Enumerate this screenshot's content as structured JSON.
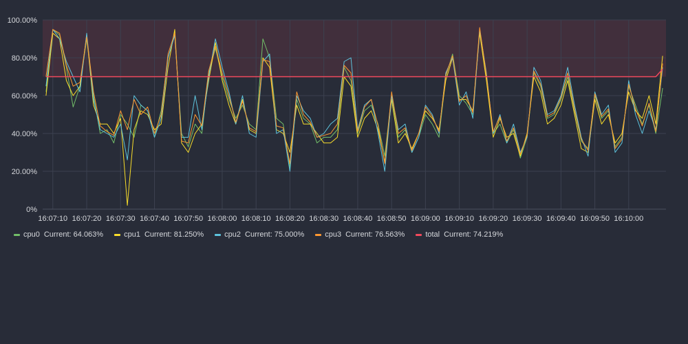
{
  "chart_data": {
    "type": "line",
    "title": "",
    "xlabel": "",
    "ylabel": "",
    "ylim": [
      0,
      100
    ],
    "xlim": [
      "16:07:07",
      "16:10:11"
    ],
    "y_ticks": [
      "0%",
      "20.00%",
      "40.00%",
      "60.00%",
      "80.00%",
      "100.00%"
    ],
    "x_ticks": [
      "16:07:10",
      "16:07:20",
      "16:07:30",
      "16:07:40",
      "16:07:50",
      "16:08:00",
      "16:08:10",
      "16:08:20",
      "16:08:30",
      "16:08:40",
      "16:08:50",
      "16:09:00",
      "16:09:10",
      "16:09:20",
      "16:09:30",
      "16:09:40",
      "16:09:50",
      "16:10:00"
    ],
    "threshold": 70,
    "threshold_band": [
      70,
      100
    ],
    "grid": true,
    "legend_position": "bottom-left",
    "x": [
      "16:07:08",
      "16:07:10",
      "16:07:12",
      "16:07:14",
      "16:07:16",
      "16:07:18",
      "16:07:20",
      "16:07:22",
      "16:07:24",
      "16:07:26",
      "16:07:28",
      "16:07:30",
      "16:07:32",
      "16:07:34",
      "16:07:36",
      "16:07:38",
      "16:07:40",
      "16:07:42",
      "16:07:44",
      "16:07:46",
      "16:07:48",
      "16:07:50",
      "16:07:52",
      "16:07:54",
      "16:07:56",
      "16:07:58",
      "16:08:00",
      "16:08:02",
      "16:08:04",
      "16:08:06",
      "16:08:08",
      "16:08:10",
      "16:08:12",
      "16:08:14",
      "16:08:16",
      "16:08:18",
      "16:08:20",
      "16:08:22",
      "16:08:24",
      "16:08:26",
      "16:08:28",
      "16:08:30",
      "16:08:32",
      "16:08:34",
      "16:08:36",
      "16:08:38",
      "16:08:40",
      "16:08:42",
      "16:08:44",
      "16:08:46",
      "16:08:48",
      "16:08:50",
      "16:08:52",
      "16:08:54",
      "16:08:56",
      "16:08:58",
      "16:09:00",
      "16:09:02",
      "16:09:04",
      "16:09:06",
      "16:09:08",
      "16:09:10",
      "16:09:12",
      "16:09:14",
      "16:09:16",
      "16:09:18",
      "16:09:20",
      "16:09:22",
      "16:09:24",
      "16:09:26",
      "16:09:28",
      "16:09:30",
      "16:09:32",
      "16:09:34",
      "16:09:36",
      "16:09:38",
      "16:09:40",
      "16:09:42",
      "16:09:44",
      "16:09:46",
      "16:09:48",
      "16:09:50",
      "16:09:52",
      "16:09:54",
      "16:09:56",
      "16:09:58",
      "16:10:00",
      "16:10:02",
      "16:10:04",
      "16:10:06",
      "16:10:08",
      "16:10:10"
    ],
    "series": [
      {
        "name": "cpu0",
        "current_label": "Current: 64.063%",
        "color": "#73bf69",
        "values": [
          62,
          95,
          92,
          75,
          54,
          65,
          90,
          60,
          40,
          42,
          35,
          50,
          45,
          38,
          55,
          52,
          38,
          52,
          80,
          92,
          40,
          33,
          45,
          40,
          72,
          85,
          70,
          58,
          48,
          55,
          45,
          42,
          90,
          80,
          48,
          45,
          22,
          58,
          48,
          45,
          35,
          38,
          38,
          42,
          75,
          68,
          40,
          52,
          55,
          45,
          28,
          60,
          38,
          42,
          30,
          38,
          50,
          45,
          38,
          70,
          82,
          60,
          56,
          50,
          95,
          70,
          40,
          45,
          35,
          42,
          27,
          38,
          72,
          65,
          48,
          50,
          58,
          70,
          52,
          36,
          32,
          60,
          48,
          52,
          33,
          38,
          65,
          55,
          45,
          55,
          40,
          64
        ]
      },
      {
        "name": "cpu1",
        "current_label": "Current: 81.250%",
        "color": "#fade2a",
        "values": [
          60,
          93,
          90,
          68,
          60,
          65,
          92,
          55,
          45,
          45,
          40,
          48,
          2,
          42,
          52,
          50,
          42,
          45,
          75,
          95,
          35,
          30,
          40,
          45,
          68,
          88,
          68,
          55,
          45,
          58,
          42,
          40,
          80,
          75,
          42,
          40,
          30,
          55,
          45,
          45,
          40,
          35,
          35,
          38,
          70,
          65,
          38,
          48,
          52,
          42,
          25,
          58,
          35,
          40,
          32,
          40,
          52,
          48,
          42,
          68,
          80,
          58,
          58,
          52,
          93,
          68,
          38,
          48,
          38,
          40,
          28,
          40,
          70,
          62,
          45,
          48,
          55,
          68,
          50,
          32,
          30,
          58,
          45,
          50,
          35,
          40,
          62,
          52,
          48,
          60,
          45,
          81
        ]
      },
      {
        "name": "cpu2",
        "current_label": "Current: 75.000%",
        "color": "#5ec4dd",
        "values": [
          65,
          95,
          90,
          78,
          70,
          62,
          93,
          58,
          42,
          40,
          38,
          45,
          26,
          60,
          55,
          52,
          38,
          48,
          80,
          92,
          38,
          38,
          60,
          42,
          70,
          90,
          75,
          62,
          45,
          60,
          40,
          38,
          78,
          82,
          40,
          42,
          20,
          60,
          52,
          48,
          38,
          40,
          45,
          48,
          78,
          80,
          42,
          55,
          58,
          40,
          20,
          60,
          42,
          45,
          30,
          38,
          55,
          50,
          40,
          72,
          80,
          55,
          62,
          48,
          95,
          72,
          40,
          50,
          35,
          45,
          30,
          38,
          75,
          68,
          50,
          52,
          60,
          75,
          55,
          38,
          28,
          62,
          50,
          55,
          30,
          35,
          68,
          50,
          40,
          52,
          42,
          75
        ]
      },
      {
        "name": "cpu3",
        "current_label": "Current: 76.563%",
        "color": "#ff9830",
        "values": [
          70,
          95,
          93,
          76,
          65,
          67,
          91,
          62,
          44,
          41,
          39,
          52,
          42,
          58,
          50,
          54,
          40,
          50,
          82,
          93,
          36,
          35,
          50,
          44,
          73,
          86,
          72,
          60,
          46,
          57,
          43,
          41,
          79,
          78,
          44,
          43,
          24,
          62,
          50,
          46,
          38,
          39,
          40,
          45,
          76,
          72,
          41,
          54,
          58,
          44,
          24,
          62,
          40,
          43,
          31,
          40,
          54,
          49,
          41,
          71,
          81,
          57,
          60,
          51,
          96,
          71,
          41,
          49,
          36,
          43,
          29,
          39,
          73,
          66,
          49,
          51,
          59,
          72,
          53,
          37,
          31,
          61,
          49,
          53,
          32,
          37,
          66,
          53,
          44,
          56,
          41,
          77
        ]
      },
      {
        "name": "total",
        "current_label": "Current: 74.219%",
        "color": "#f2495c",
        "values": [
          70,
          70,
          70,
          70,
          70,
          70,
          70,
          70,
          70,
          70,
          70,
          70,
          70,
          70,
          70,
          70,
          70,
          70,
          70,
          70,
          70,
          70,
          70,
          70,
          70,
          70,
          70,
          70,
          70,
          70,
          70,
          70,
          70,
          70,
          70,
          70,
          70,
          70,
          70,
          70,
          70,
          70,
          70,
          70,
          70,
          70,
          70,
          70,
          70,
          70,
          70,
          70,
          70,
          70,
          70,
          70,
          70,
          70,
          70,
          70,
          70,
          70,
          70,
          70,
          70,
          70,
          70,
          70,
          70,
          70,
          70,
          70,
          70,
          70,
          70,
          70,
          70,
          70,
          70,
          70,
          70,
          70,
          70,
          70,
          70,
          70,
          70,
          70,
          70,
          70,
          70,
          74
        ]
      }
    ]
  }
}
